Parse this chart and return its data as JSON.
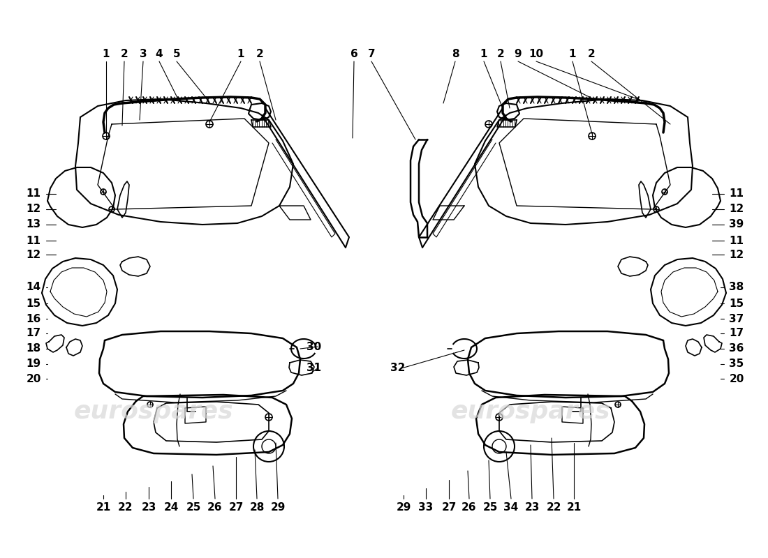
{
  "background_color": "#ffffff",
  "watermark_text": "eurospares",
  "watermark_color": "#d8d8d8",
  "line_color": "#000000",
  "label_fontsize": 11,
  "top_left_labels": [
    [
      "1",
      152,
      78
    ],
    [
      "2",
      178,
      78
    ],
    [
      "3",
      205,
      78
    ],
    [
      "4",
      228,
      78
    ],
    [
      "5",
      253,
      78
    ]
  ],
  "top_left_right_labels": [
    [
      "1",
      345,
      78
    ],
    [
      "2",
      372,
      78
    ]
  ],
  "top_center_labels": [
    [
      "6",
      507,
      78
    ],
    [
      "7",
      532,
      78
    ]
  ],
  "top_right_left_labels": [
    [
      "8",
      652,
      78
    ],
    [
      "1",
      693,
      78
    ],
    [
      "2",
      717,
      78
    ],
    [
      "9",
      742,
      78
    ],
    [
      "10",
      768,
      78
    ]
  ],
  "top_right_labels": [
    [
      "1",
      820,
      78
    ],
    [
      "2",
      847,
      78
    ]
  ],
  "left_labels": [
    [
      "11",
      48,
      278
    ],
    [
      "12",
      48,
      300
    ],
    [
      "13",
      48,
      322
    ],
    [
      "11",
      48,
      345
    ],
    [
      "12",
      48,
      365
    ],
    [
      "14",
      48,
      412
    ],
    [
      "15",
      48,
      435
    ],
    [
      "16",
      48,
      457
    ],
    [
      "17",
      48,
      478
    ],
    [
      "18",
      48,
      500
    ],
    [
      "19",
      48,
      522
    ],
    [
      "20",
      48,
      543
    ]
  ],
  "right_labels": [
    [
      "11",
      1055,
      278
    ],
    [
      "12",
      1055,
      300
    ],
    [
      "39",
      1055,
      322
    ],
    [
      "11",
      1055,
      345
    ],
    [
      "12",
      1055,
      365
    ],
    [
      "38",
      1055,
      412
    ],
    [
      "15",
      1055,
      435
    ],
    [
      "37",
      1055,
      457
    ],
    [
      "17",
      1055,
      478
    ],
    [
      "36",
      1055,
      500
    ],
    [
      "35",
      1055,
      522
    ],
    [
      "20",
      1055,
      543
    ]
  ],
  "bottom_left_labels": [
    [
      "21",
      148,
      727
    ],
    [
      "22",
      180,
      727
    ],
    [
      "23",
      213,
      727
    ],
    [
      "24",
      245,
      727
    ],
    [
      "25",
      277,
      727
    ],
    [
      "26",
      308,
      727
    ],
    [
      "27",
      338,
      727
    ],
    [
      "28",
      368,
      727
    ],
    [
      "29",
      398,
      727
    ]
  ],
  "bottom_right_labels": [
    [
      "29",
      578,
      727
    ],
    [
      "33",
      610,
      727
    ],
    [
      "27",
      643,
      727
    ],
    [
      "26",
      672,
      727
    ],
    [
      "25",
      702,
      727
    ],
    [
      "34",
      732,
      727
    ],
    [
      "23",
      762,
      727
    ],
    [
      "22",
      793,
      727
    ],
    [
      "21",
      822,
      727
    ]
  ],
  "center_labels": [
    [
      "30",
      450,
      497
    ],
    [
      "31",
      450,
      528
    ],
    [
      "32",
      570,
      528
    ]
  ]
}
